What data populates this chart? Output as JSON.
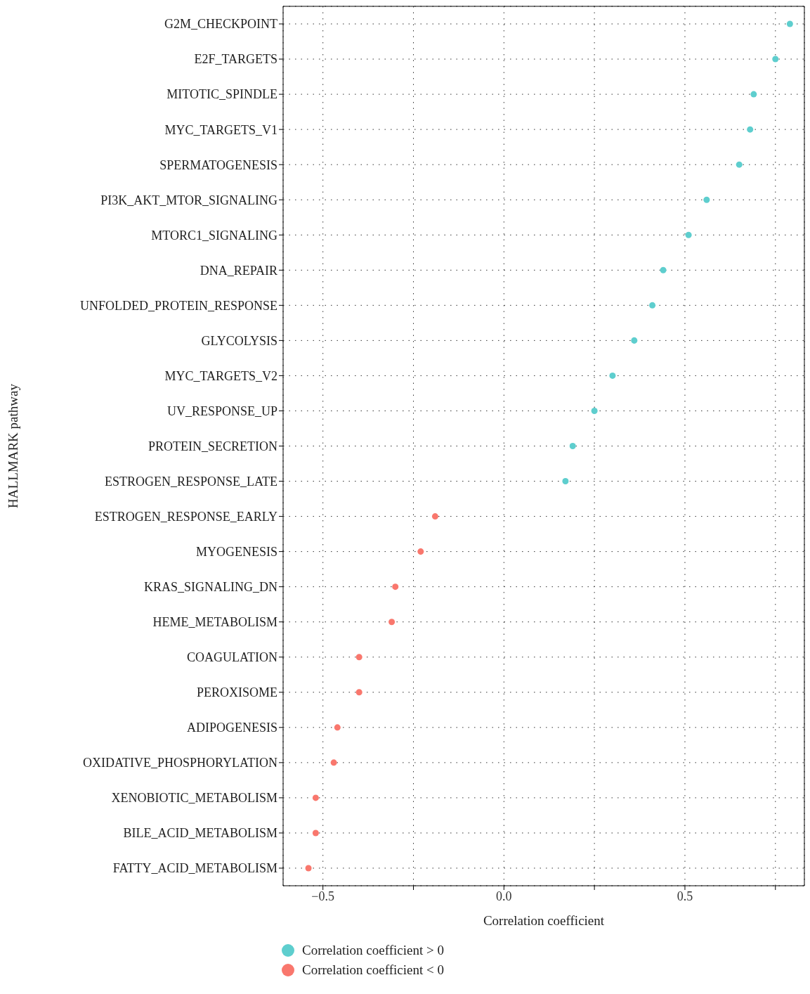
{
  "chart_data": {
    "type": "scatter",
    "xlabel": "Correlation coefficient",
    "ylabel": "HALLMARK pathway",
    "categories": [
      "G2M_CHECKPOINT",
      "E2F_TARGETS",
      "MITOTIC_SPINDLE",
      "MYC_TARGETS_V1",
      "SPERMATOGENESIS",
      "PI3K_AKT_MTOR_SIGNALING",
      "MTORC1_SIGNALING",
      "DNA_REPAIR",
      "UNFOLDED_PROTEIN_RESPONSE",
      "GLYCOLYSIS",
      "MYC_TARGETS_V2",
      "UV_RESPONSE_UP",
      "PROTEIN_SECRETION",
      "ESTROGEN_RESPONSE_LATE",
      "ESTROGEN_RESPONSE_EARLY",
      "MYOGENESIS",
      "KRAS_SIGNALING_DN",
      "HEME_METABOLISM",
      "COAGULATION",
      "PEROXISOME",
      "ADIPOGENESIS",
      "OXIDATIVE_PHOSPHORYLATION",
      "XENOBIOTIC_METABOLISM",
      "BILE_ACID_METABOLISM",
      "FATTY_ACID_METABOLISM"
    ],
    "orientation": "horizontal",
    "series": [
      {
        "name": "Correlation coefficient > 0",
        "color": "#5ecece",
        "values": [
          0.79,
          0.75,
          0.69,
          0.68,
          0.65,
          0.56,
          0.51,
          0.44,
          0.41,
          0.36,
          0.3,
          0.25,
          0.19,
          0.17,
          null,
          null,
          null,
          null,
          null,
          null,
          null,
          null,
          null,
          null,
          null
        ]
      },
      {
        "name": "Correlation coefficient < 0",
        "color": "#f9776d",
        "values": [
          null,
          null,
          null,
          null,
          null,
          null,
          null,
          null,
          null,
          null,
          null,
          null,
          null,
          null,
          -0.19,
          -0.23,
          -0.3,
          -0.31,
          -0.4,
          -0.4,
          -0.46,
          -0.47,
          -0.52,
          -0.52,
          -0.54
        ]
      }
    ],
    "xlim": [
      -0.61,
      0.83
    ],
    "xticks": [
      -0.5,
      {
        "value": -0.25,
        "label": null
      },
      {
        "value": 0,
        "label": "0.0"
      },
      {
        "value": 0.25,
        "label": null
      },
      0.5,
      {
        "value": 0.75,
        "label": null
      }
    ],
    "grid": true,
    "legend": "bottom left",
    "marker": "circle"
  }
}
